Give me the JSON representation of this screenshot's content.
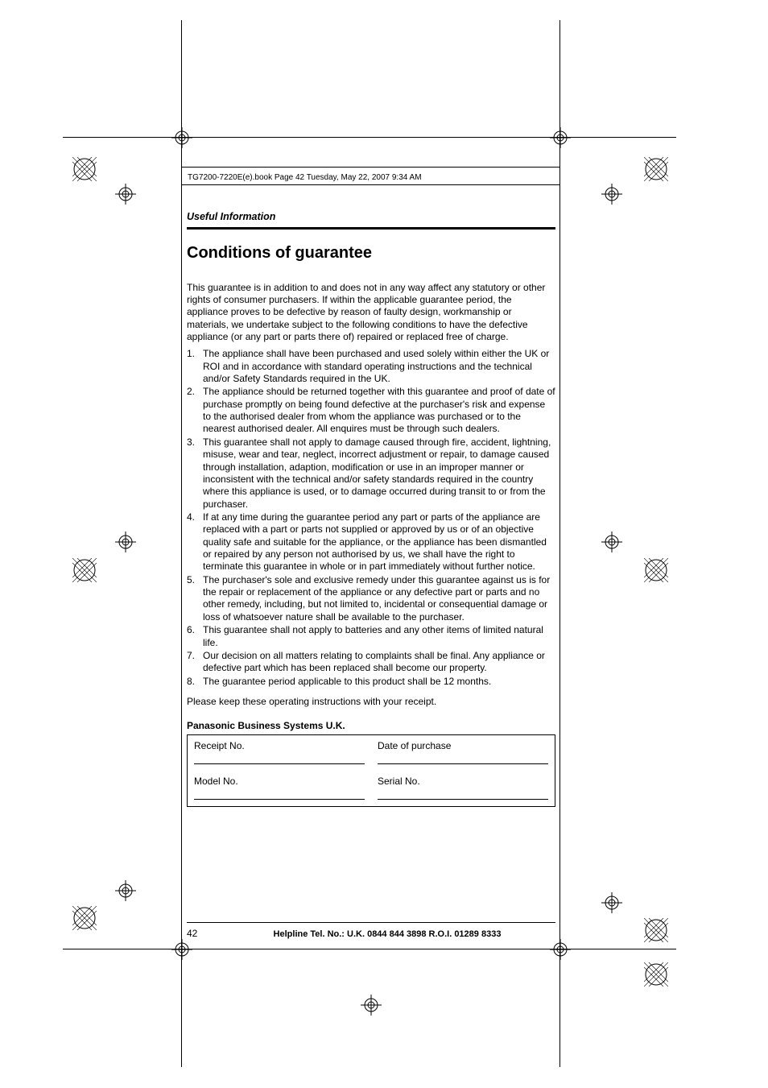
{
  "crop": {
    "innerLeft": 225,
    "innerRight": 695,
    "innerTop": 170,
    "innerBottom": 1178,
    "outerTop": 25,
    "outerBottom": 1325,
    "outerLeft": 78,
    "outerRight": 840
  },
  "bookline": "TG7200-7220E(e).book  Page 42  Tuesday, May 22, 2007  9:34 AM",
  "runhead": "Useful Information",
  "title": "Conditions of guarantee",
  "intro": "This guarantee is in addition to and does not in any way affect any statutory or other rights of consumer purchasers. If within the applicable guarantee period, the appliance proves to be defective by reason of faulty design, workmanship or materials, we undertake subject to the following conditions to have the defective appliance (or any part or parts there of) repaired or replaced free of charge.",
  "items": [
    "The appliance shall have been purchased and used solely within either the UK or ROI and in accordance with standard operating instructions and the technical and/or Safety Standards required in the UK.",
    "The appliance should be returned together with this guarantee and proof of date of purchase promptly on being found defective at the purchaser's risk and expense to the authorised dealer from whom the appliance was purchased or to the nearest authorised dealer. All enquires must be through such dealers.",
    "This guarantee shall not apply to damage caused through fire, accident, lightning, misuse, wear and tear, neglect, incorrect adjustment or repair, to damage caused through installation, adaption, modification or use in an improper manner or inconsistent with the technical and/or safety standards required in the country where this appliance is used, or to damage occurred during transit to or from the purchaser.",
    "If at any time during the guarantee period any part or parts of the appliance are replaced with a part or parts not supplied or approved by us or of an objective quality safe and suitable for the appliance, or the appliance has been dismantled or repaired by any person not authorised by us, we shall have the right to terminate this guarantee in whole or in part immediately without further notice.",
    "The purchaser's sole and exclusive remedy under this guarantee against us is for the repair or replacement of the appliance or any defective part or parts and no other remedy, including, but not limited to, incidental or consequential damage or loss of whatsoever nature shall be available to the purchaser.",
    "This guarantee shall not apply to batteries and any other items of limited natural life.",
    "Our decision on all matters relating to complaints shall be final. Any appliance or defective part which has been replaced shall become our property.",
    "The guarantee period applicable to this product shall be 12 months."
  ],
  "closing": "Please keep these operating instructions with your receipt.",
  "company": "Panasonic Business Systems U.K.",
  "form": {
    "r1c1": "Receipt No.",
    "r1c2": "Date of purchase",
    "r2c1": "Model No.",
    "r2c2": "Serial No."
  },
  "pageNumber": "42",
  "helpline": "Helpline Tel. No.: U.K. 0844 844 3898 R.O.I. 01289 8333",
  "footerTop": 1145
}
